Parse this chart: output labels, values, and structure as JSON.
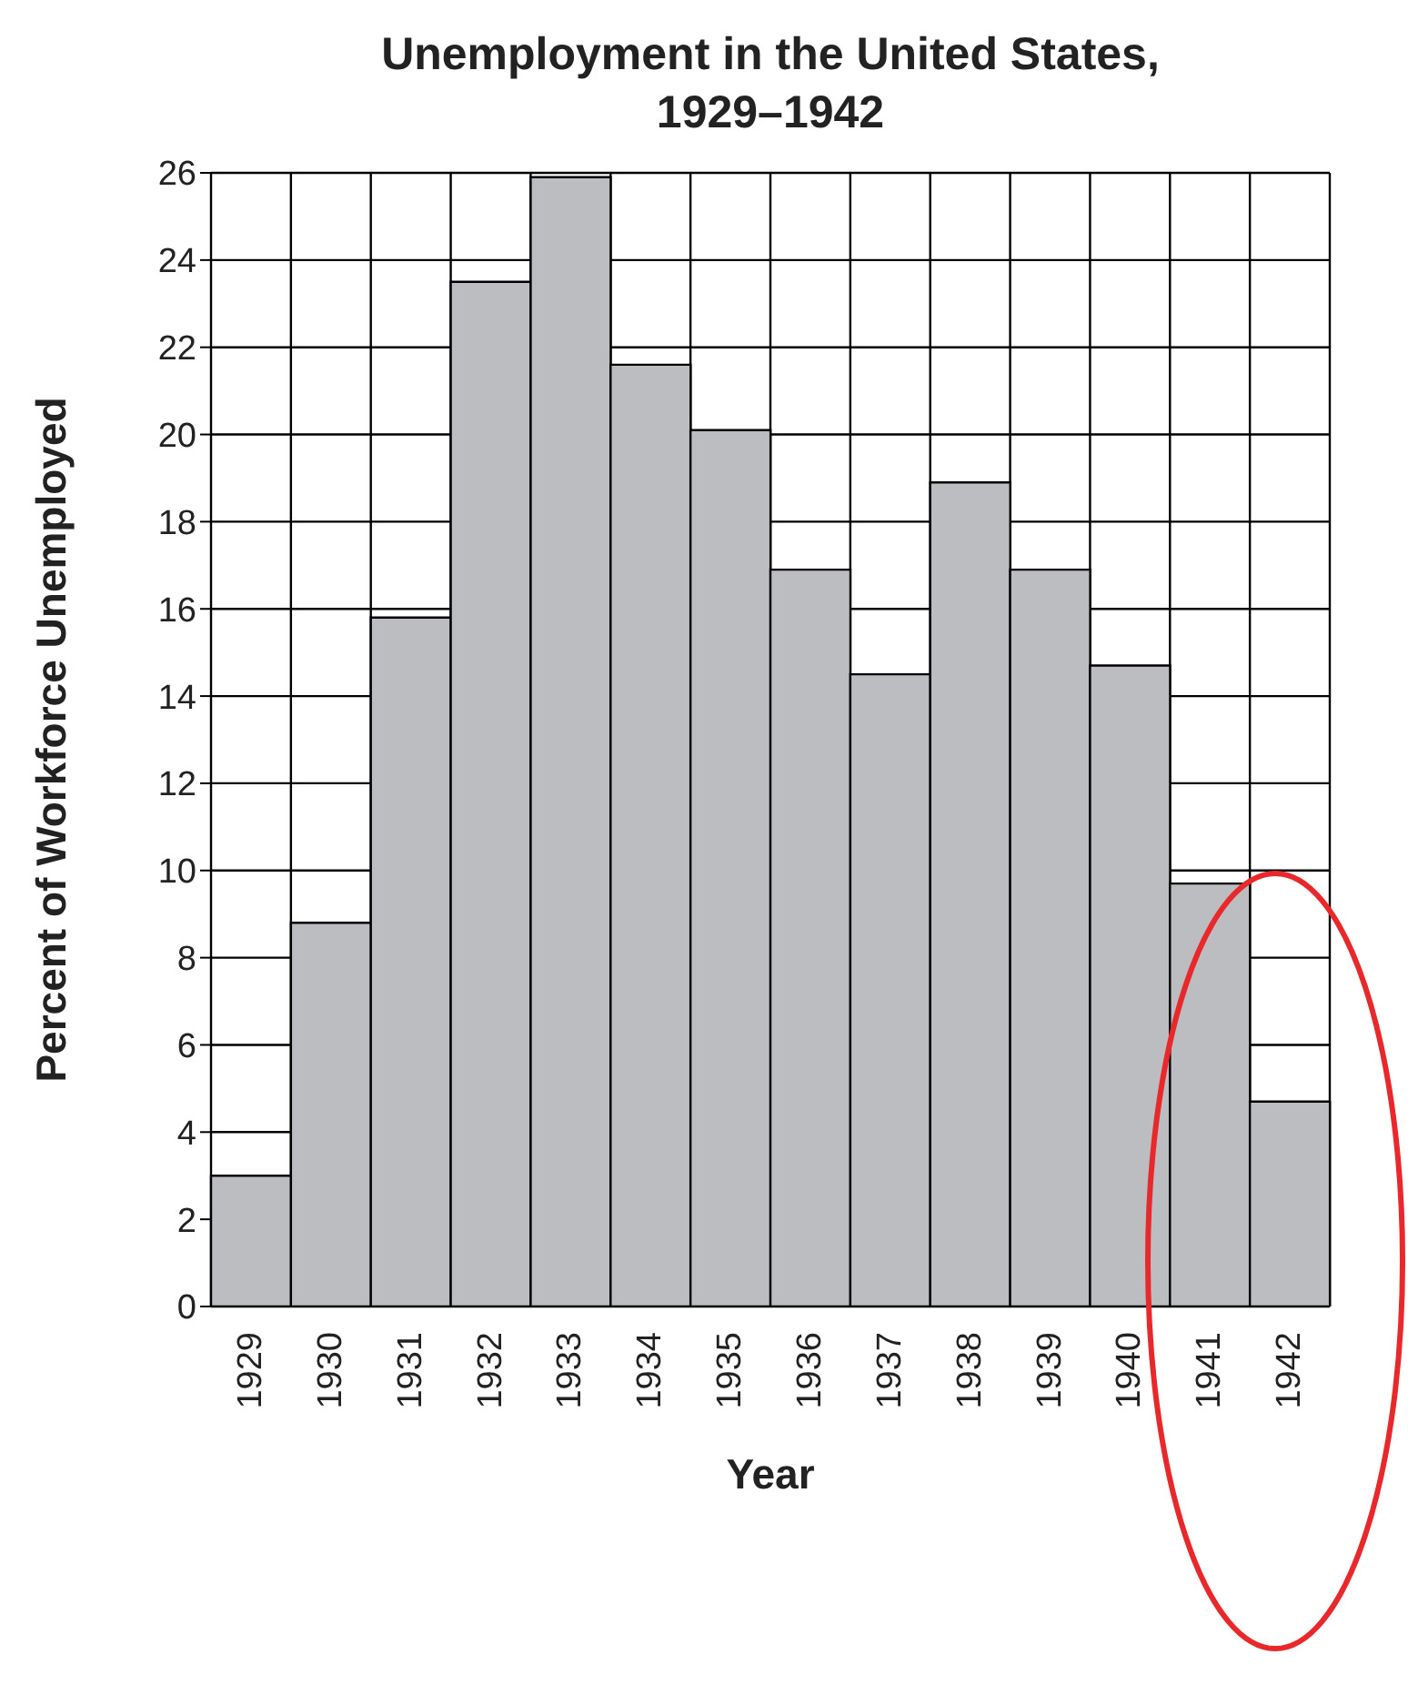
{
  "chart_data": {
    "type": "bar",
    "title": "Unemployment in the United States,\n1929–1942",
    "xlabel": "Year",
    "ylabel": "Percent of Workforce Unemployed",
    "categories": [
      "1929",
      "1930",
      "1931",
      "1932",
      "1933",
      "1934",
      "1935",
      "1936",
      "1937",
      "1938",
      "1939",
      "1940",
      "1941",
      "1942"
    ],
    "values": [
      3,
      8.8,
      15.8,
      23.5,
      25.9,
      21.6,
      20.1,
      16.9,
      14.5,
      18.9,
      16.9,
      14.7,
      9.7,
      4.7
    ],
    "color": "#bcbdc1",
    "ylim": [
      0,
      26
    ],
    "yticks": [
      0,
      2,
      4,
      6,
      8,
      10,
      12,
      14,
      16,
      18,
      20,
      22,
      24,
      26
    ],
    "grid": true,
    "legend": false
  }
}
